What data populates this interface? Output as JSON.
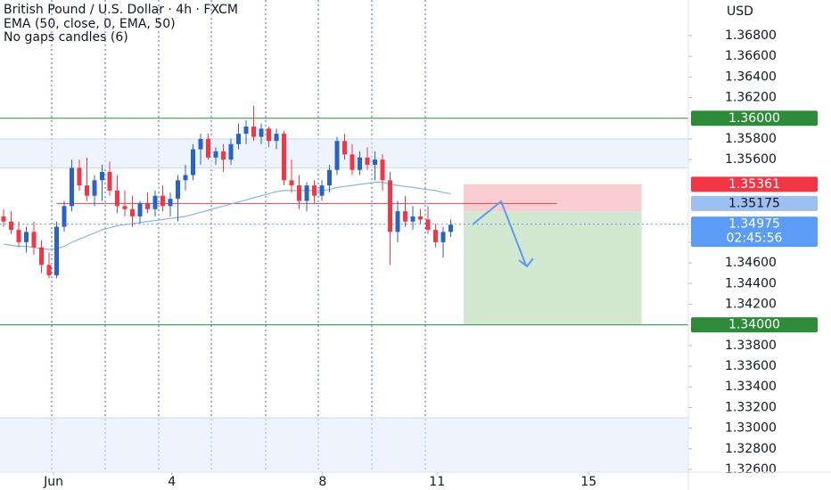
{
  "chart_data": {
    "type": "candlestick",
    "title": "British Pound / U.S. Dollar · 4h · FXCM",
    "subtitle": "No gaps candles (6)",
    "axis_label": "USD",
    "xlim": [
      -0.47,
      90.35
    ],
    "ylim": [
      1.32574,
      1.37145
    ],
    "xticks": [
      {
        "value": 6.6,
        "label": "Jun"
      },
      {
        "value": 22.2,
        "label": "4"
      },
      {
        "value": 42.1,
        "label": "8"
      },
      {
        "value": 57.2,
        "label": "11"
      },
      {
        "value": 77.2,
        "label": "15"
      }
    ],
    "yticks": [
      {
        "value": 1.368,
        "label": "1.36800"
      },
      {
        "value": 1.366,
        "label": "1.36600"
      },
      {
        "value": 1.364,
        "label": "1.36400"
      },
      {
        "value": 1.362,
        "label": "1.36200"
      },
      {
        "value": 1.358,
        "label": "1.35800"
      },
      {
        "value": 1.356,
        "label": "1.35600"
      },
      {
        "value": 1.348,
        "label": "1.34800"
      },
      {
        "value": 1.346,
        "label": "1.34600"
      },
      {
        "value": 1.344,
        "label": "1.34400"
      },
      {
        "value": 1.342,
        "label": "1.34200"
      },
      {
        "value": 1.338,
        "label": "1.33800"
      },
      {
        "value": 1.336,
        "label": "1.33600"
      },
      {
        "value": 1.334,
        "label": "1.33400"
      },
      {
        "value": 1.332,
        "label": "1.33200"
      },
      {
        "value": 1.33,
        "label": "1.33000"
      },
      {
        "value": 1.328,
        "label": "1.32800"
      },
      {
        "value": 1.326,
        "label": "1.32600"
      }
    ],
    "up_color": "#2962c8",
    "down_color": "#f23645",
    "candles": {
      "open": [
        1.3505,
        1.35,
        1.3492,
        1.348,
        1.349,
        1.3475,
        1.3458,
        1.3448,
        1.3495,
        1.3515,
        1.3552,
        1.3535,
        1.3525,
        1.354,
        1.3548,
        1.353,
        1.3515,
        1.3512,
        1.3505,
        1.3518,
        1.3512,
        1.3525,
        1.3515,
        1.3522,
        1.354,
        1.3545,
        1.357,
        1.358,
        1.3562,
        1.3568,
        1.356,
        1.3575,
        1.3585,
        1.3592,
        1.3582,
        1.359,
        1.3578,
        1.3585,
        1.354,
        1.3535,
        1.352,
        1.3535,
        1.3525,
        1.3535,
        1.355,
        1.3578,
        1.3565,
        1.355,
        1.3562,
        1.3555,
        1.356,
        1.354,
        1.349,
        1.351,
        1.35,
        1.3505,
        1.3502,
        1.3492,
        1.348,
        1.349
      ],
      "high": [
        1.3512,
        1.351,
        1.35,
        1.3495,
        1.35,
        1.3482,
        1.347,
        1.35,
        1.352,
        1.356,
        1.356,
        1.3562,
        1.3545,
        1.3555,
        1.3558,
        1.3545,
        1.353,
        1.3525,
        1.352,
        1.3528,
        1.353,
        1.3535,
        1.3528,
        1.3545,
        1.3555,
        1.3575,
        1.3585,
        1.3585,
        1.3572,
        1.3575,
        1.358,
        1.3595,
        1.3598,
        1.3612,
        1.3595,
        1.3592,
        1.359,
        1.3588,
        1.356,
        1.3545,
        1.3538,
        1.354,
        1.354,
        1.3555,
        1.3582,
        1.3585,
        1.3575,
        1.3568,
        1.3572,
        1.3568,
        1.3565,
        1.3548,
        1.352,
        1.3525,
        1.3515,
        1.3512,
        1.3515,
        1.3498,
        1.3495,
        1.3502
      ],
      "low": [
        1.3495,
        1.3488,
        1.3475,
        1.347,
        1.3468,
        1.345,
        1.3445,
        1.3445,
        1.349,
        1.351,
        1.353,
        1.352,
        1.3515,
        1.352,
        1.3525,
        1.3508,
        1.3505,
        1.3495,
        1.3498,
        1.3508,
        1.3505,
        1.351,
        1.3505,
        1.35,
        1.353,
        1.354,
        1.3555,
        1.356,
        1.3555,
        1.3548,
        1.3555,
        1.357,
        1.3575,
        1.3578,
        1.3575,
        1.3572,
        1.357,
        1.3535,
        1.3528,
        1.3512,
        1.351,
        1.3518,
        1.352,
        1.3528,
        1.3545,
        1.356,
        1.3545,
        1.3545,
        1.355,
        1.354,
        1.353,
        1.3458,
        1.348,
        1.3495,
        1.3492,
        1.3498,
        1.3488,
        1.3475,
        1.3465,
        1.3485
      ],
      "close": [
        1.35,
        1.3492,
        1.348,
        1.349,
        1.3475,
        1.3458,
        1.3448,
        1.3495,
        1.3515,
        1.3552,
        1.3535,
        1.3525,
        1.354,
        1.3548,
        1.353,
        1.3515,
        1.3512,
        1.3505,
        1.3518,
        1.3512,
        1.3525,
        1.3515,
        1.3522,
        1.354,
        1.3545,
        1.357,
        1.358,
        1.3562,
        1.3568,
        1.356,
        1.3575,
        1.3585,
        1.3592,
        1.3582,
        1.359,
        1.3578,
        1.3585,
        1.354,
        1.3535,
        1.352,
        1.3535,
        1.3525,
        1.3535,
        1.355,
        1.3578,
        1.3565,
        1.355,
        1.3562,
        1.3555,
        1.356,
        1.354,
        1.349,
        1.351,
        1.35,
        1.3505,
        1.3502,
        1.3492,
        1.348,
        1.349,
        1.3497
      ]
    },
    "ema": {
      "name": "EMA (50, close, 0, EMA, 50)",
      "color": "#8ab4e8",
      "values": [
        1.3478,
        1.3477,
        1.3476,
        1.3476,
        1.3475,
        1.3474,
        1.3473,
        1.3474,
        1.3476,
        1.348,
        1.3483,
        1.3486,
        1.3489,
        1.3492,
        1.3494,
        1.3496,
        1.3497,
        1.3498,
        1.3499,
        1.35,
        1.3501,
        1.3502,
        1.3503,
        1.3504,
        1.3505,
        1.3507,
        1.3509,
        1.3511,
        1.3513,
        1.3515,
        1.3517,
        1.3519,
        1.3521,
        1.3523,
        1.3525,
        1.3527,
        1.3529,
        1.353,
        1.353,
        1.353,
        1.353,
        1.353,
        1.353,
        1.3531,
        1.3533,
        1.3534,
        1.3535,
        1.3536,
        1.3537,
        1.3538,
        1.3538,
        1.3536,
        1.3535,
        1.3534,
        1.3533,
        1.3532,
        1.3531,
        1.353,
        1.3528,
        1.3527
      ]
    },
    "shaded_zones": [
      [
        1.3552,
        1.358
      ],
      [
        1.32574,
        1.331
      ]
    ],
    "position": {
      "from": 60.7,
      "to": 84.2,
      "entry": 1.351,
      "stop": 1.35361,
      "target": 1.34
    },
    "price_labels": [
      {
        "value": 1.36,
        "label": "1.36000",
        "color": "#2e8b3a"
      },
      {
        "value": 1.35361,
        "label": "1.35361",
        "color": "#f23645"
      },
      {
        "value": 1.35175,
        "label": "1.35175",
        "color": "#9cc0f0"
      },
      {
        "value": 1.34975,
        "label": "1.34975",
        "color": "#5b9cf6"
      },
      {
        "value": 1.34,
        "label": "1.34000",
        "color": "#2e8b3a"
      }
    ],
    "countdown": "02:45:56"
  }
}
